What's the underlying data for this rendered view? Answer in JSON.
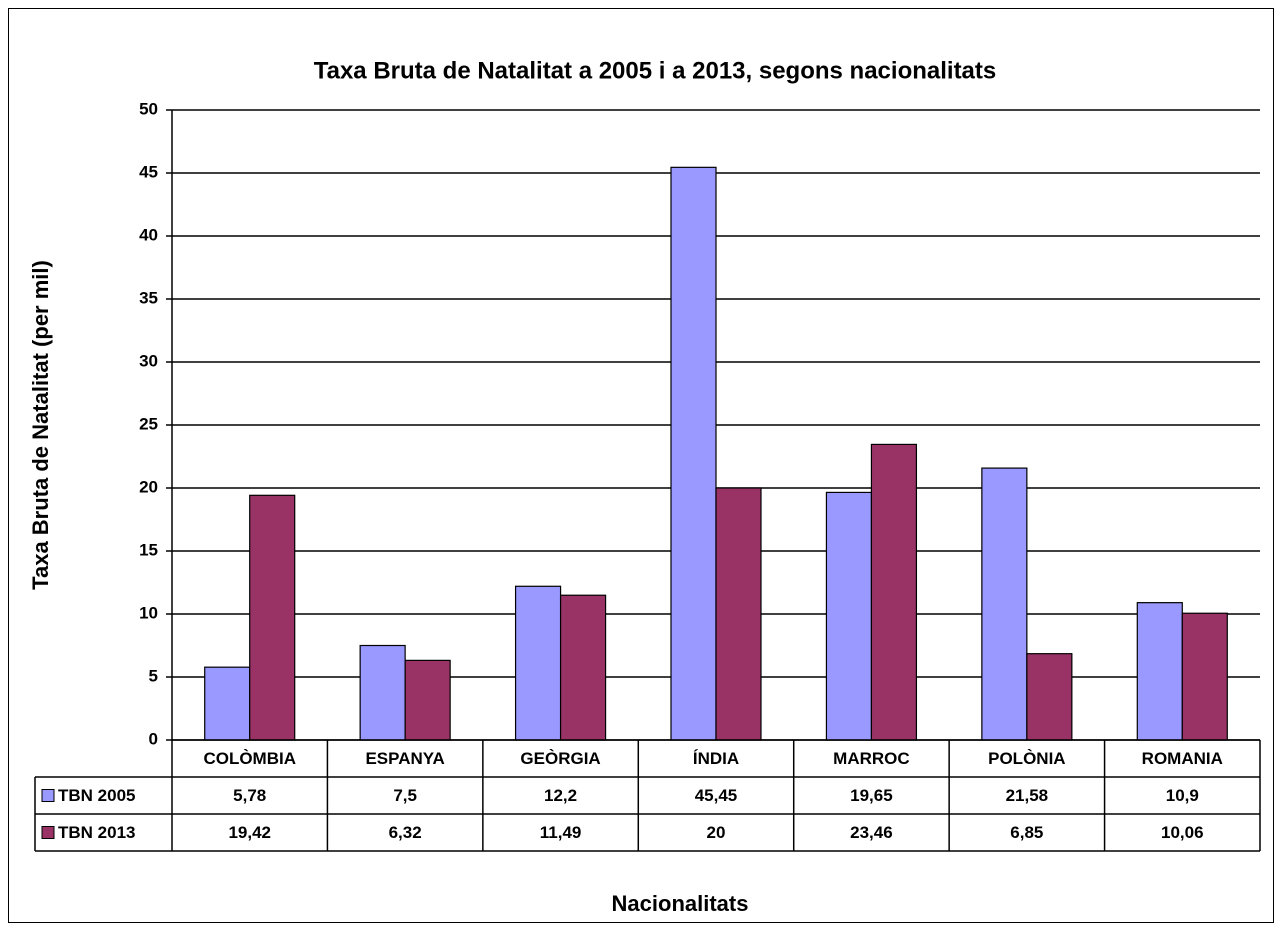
{
  "chart_data": {
    "type": "bar",
    "title": "Taxa Bruta de Natalitat a 2005 i a 2013, segons nacionalitats",
    "y_label": "Taxa Bruta de Natalitat (per mil)",
    "x_label": "Nacionalitats",
    "categories": [
      "COLÒMBIA",
      "ESPANYA",
      "GEÒRGIA",
      "ÍNDIA",
      "MARROC",
      "POLÒNIA",
      "ROMANIA"
    ],
    "series": [
      {
        "name": "TBN 2005",
        "color": "#9999ff",
        "values": [
          5.78,
          7.5,
          12.2,
          45.45,
          19.65,
          21.58,
          10.9
        ],
        "value_labels": [
          "5,78",
          "7,5",
          "12,2",
          "45,45",
          "19,65",
          "21,58",
          "10,9"
        ]
      },
      {
        "name": "TBN 2013",
        "color": "#993366",
        "values": [
          19.42,
          6.32,
          11.49,
          20,
          23.46,
          6.85,
          10.06
        ],
        "value_labels": [
          "19,42",
          "6,32",
          "11,49",
          "20",
          "23,46",
          "6,85",
          "10,06"
        ]
      }
    ],
    "ylim": [
      0,
      50
    ],
    "yticks": [
      0,
      5,
      10,
      15,
      20,
      25,
      30,
      35,
      40,
      45,
      50
    ],
    "grid": true
  }
}
